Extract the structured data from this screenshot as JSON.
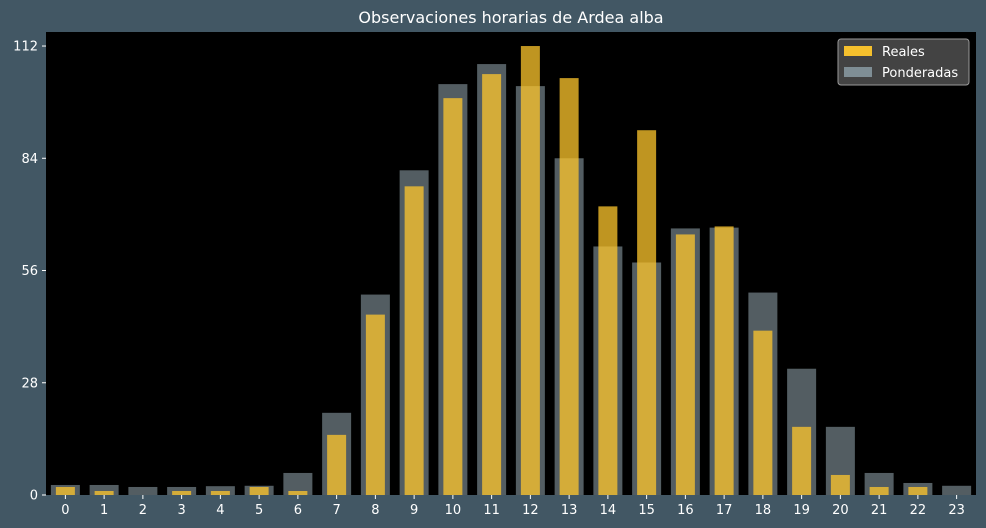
{
  "chart_data": {
    "type": "bar",
    "title": "Observaciones horarias de Ardea alba",
    "xlabel": "",
    "ylabel": "",
    "categories": [
      "0",
      "1",
      "2",
      "3",
      "4",
      "5",
      "6",
      "7",
      "8",
      "9",
      "10",
      "11",
      "12",
      "13",
      "14",
      "15",
      "16",
      "17",
      "18",
      "19",
      "20",
      "21",
      "22",
      "23"
    ],
    "yticks": [
      0,
      28,
      56,
      84,
      112
    ],
    "ylim": [
      0,
      115.5
    ],
    "grid": false,
    "legend_position": "top-right",
    "series": [
      {
        "name": "Reales",
        "color": "#ffc72c",
        "values": [
          2,
          1,
          0,
          1,
          1,
          2,
          1,
          15,
          45,
          77,
          99,
          105,
          112,
          104,
          72,
          91,
          65,
          67,
          41,
          17,
          5,
          2,
          2,
          0
        ]
      },
      {
        "name": "Ponderadas",
        "color": "#8a9ba3",
        "values": [
          2.5,
          2.5,
          2,
          2,
          2.2,
          2.3,
          5.5,
          20.5,
          50,
          81,
          102.5,
          107.5,
          102,
          84,
          62,
          58,
          66.5,
          66.7,
          50.5,
          31.5,
          17,
          5.5,
          3,
          2.3
        ]
      }
    ],
    "colors": {
      "page_background": "#425764",
      "plot_background": "#000000",
      "text": "#ffffff",
      "legend_background": "#4f4f4f",
      "legend_border": "#9a9a9a"
    }
  }
}
